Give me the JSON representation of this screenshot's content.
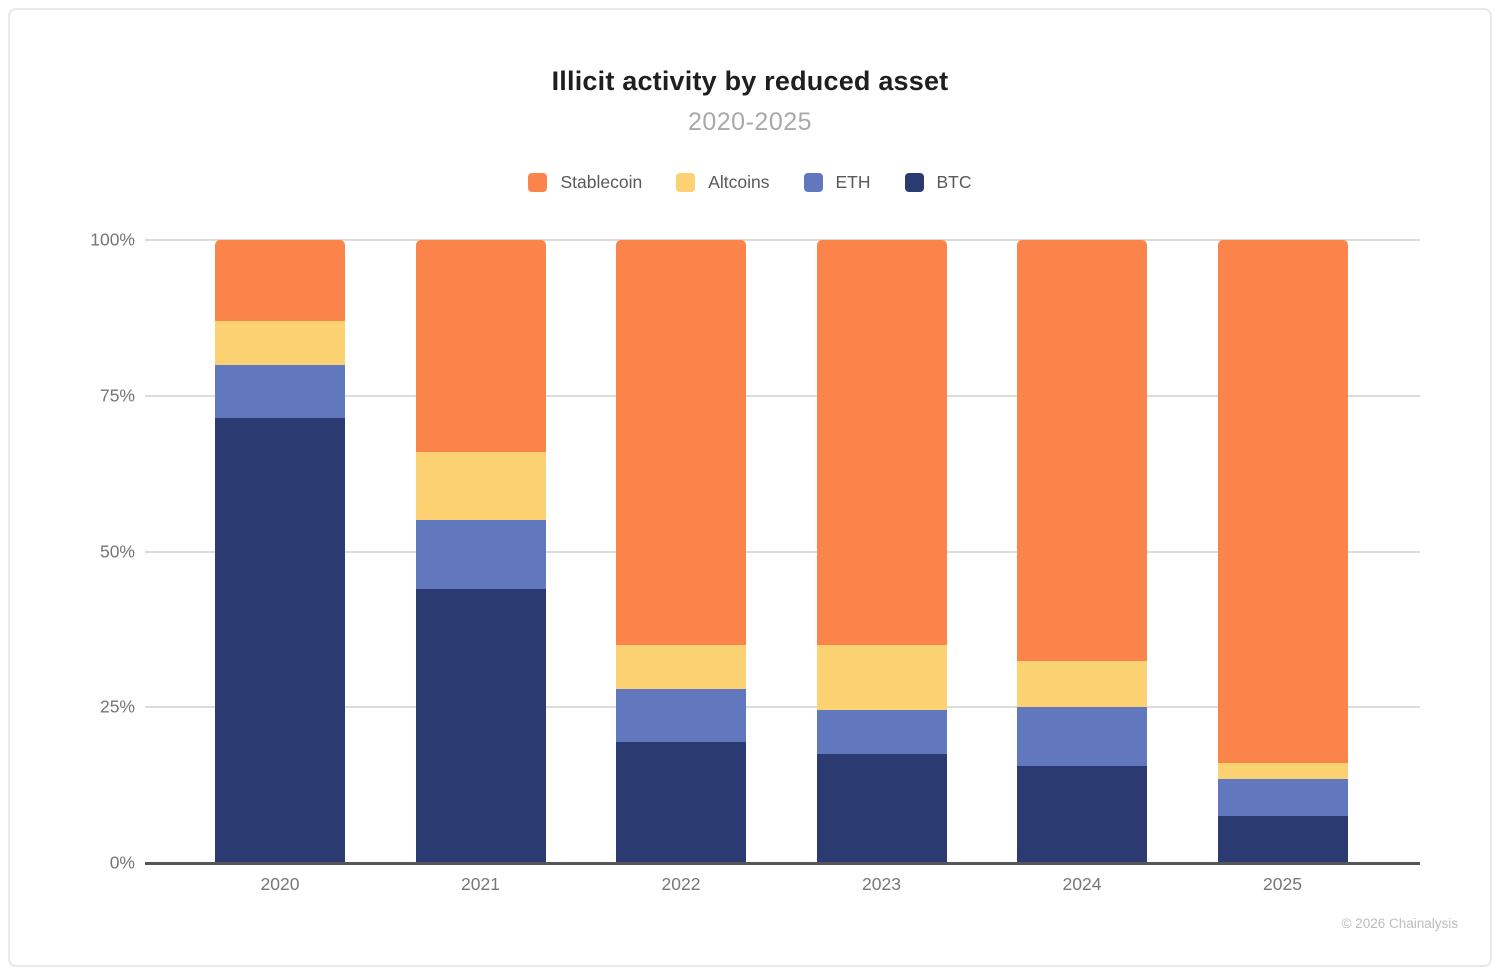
{
  "page": {
    "copyright": "© 2026 Chainalysis"
  },
  "chart_data": {
    "type": "bar",
    "stacked": true,
    "title": "Illicit activity by reduced asset",
    "subtitle": "2020-2025",
    "categories": [
      "2020",
      "2021",
      "2022",
      "2023",
      "2024",
      "2025"
    ],
    "series": [
      {
        "name": "Stablecoin",
        "color": "#FA8449",
        "values": [
          13,
          34,
          65,
          65,
          67.5,
          84
        ]
      },
      {
        "name": "Altcoins",
        "color": "#FBD171",
        "values": [
          7,
          11,
          7,
          10.5,
          7.5,
          2.5
        ]
      },
      {
        "name": "ETH",
        "color": "#6178BF",
        "values": [
          8.5,
          11,
          8.5,
          7,
          9.5,
          6
        ]
      },
      {
        "name": "BTC",
        "color": "#2B3B72",
        "values": [
          71.5,
          44,
          19.5,
          17.5,
          15.5,
          7.5
        ]
      }
    ],
    "stack_order_bottom_to_top": [
      "BTC",
      "ETH",
      "Altcoins",
      "Stablecoin"
    ],
    "ylim": [
      0,
      100
    ],
    "yticks": [
      0,
      25,
      50,
      75,
      100
    ],
    "ytick_labels": [
      "0%",
      "25%",
      "50%",
      "75%",
      "100%"
    ],
    "grid": true,
    "legend_position": "top",
    "colors": {
      "grid": "#DCDCDC",
      "axis": "#55565A",
      "tick_text": "#757575",
      "title_text": "#1F1F1F",
      "subtitle_text": "#A9A9A9",
      "legend_text": "#595959",
      "copyright_text": "#BDBDBD"
    }
  }
}
